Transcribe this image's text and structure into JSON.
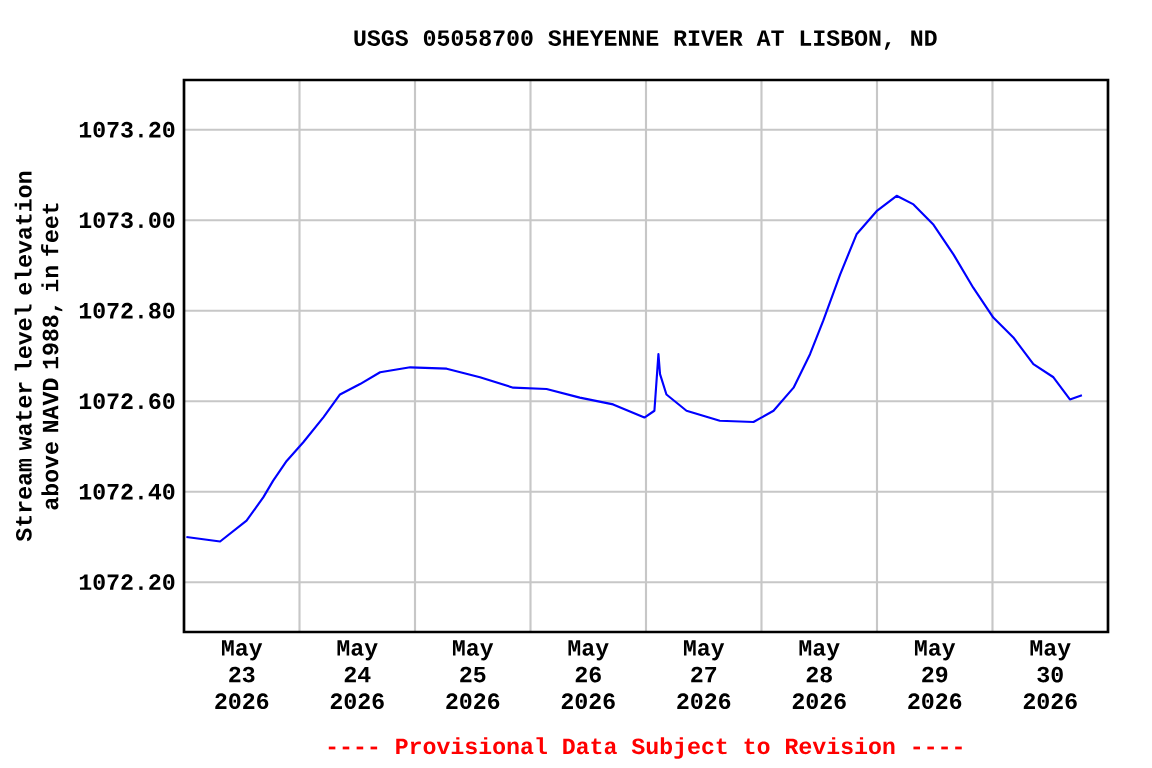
{
  "chart_data": {
    "type": "line",
    "title": "USGS 05058700 SHEYENNE RIVER AT LISBON, ND",
    "ylabel": "Stream water level elevation above NAVD 1988, in feet",
    "annotations": [
      "---- Provisional Data Subject to Revision ----"
    ],
    "color": "#0000ff",
    "grid": true,
    "xlim": [
      "2026-05-23T00:00",
      "2026-05-31T00:00"
    ],
    "xticks": [
      {
        "value": "2026-05-23T12:00",
        "label": "May 23 2026"
      },
      {
        "value": "2026-05-24T12:00",
        "label": "May 24 2026"
      },
      {
        "value": "2026-05-25T12:00",
        "label": "May 25 2026"
      },
      {
        "value": "2026-05-26T12:00",
        "label": "May 26 2026"
      },
      {
        "value": "2026-05-27T12:00",
        "label": "May 27 2026"
      },
      {
        "value": "2026-05-28T12:00",
        "label": "May 28 2026"
      },
      {
        "value": "2026-05-29T12:00",
        "label": "May 29 2026"
      },
      {
        "value": "2026-05-30T12:00",
        "label": "May 30 2026"
      },
      {
        "value": "2026-05-24T00:00",
        "label": null
      },
      {
        "value": "2026-05-25T00:00",
        "label": null
      },
      {
        "value": "2026-05-26T00:00",
        "label": null
      },
      {
        "value": "2026-05-27T00:00",
        "label": null
      },
      {
        "value": "2026-05-28T00:00",
        "label": null
      },
      {
        "value": "2026-05-29T00:00",
        "label": null
      },
      {
        "value": "2026-05-30T00:00",
        "label": null
      }
    ],
    "ylim": [
      1072.09,
      1073.31
    ],
    "yticks": [
      {
        "value": 1072.2,
        "label": "1072.20"
      },
      {
        "value": 1072.4,
        "label": "1072.40"
      },
      {
        "value": 1072.6,
        "label": "1072.60"
      },
      {
        "value": 1072.8,
        "label": "1072.80"
      },
      {
        "value": 1073.0,
        "label": "1073.00"
      },
      {
        "value": 1073.2,
        "label": "1073.20"
      }
    ],
    "x": [
      "2026-05-23T00:30",
      "2026-05-23T07:30",
      "2026-05-23T13:00",
      "2026-05-23T16:30",
      "2026-05-23T18:30",
      "2026-05-23T21:20",
      "2026-05-24T00:50",
      "2026-05-24T05:00",
      "2026-05-24T08:25",
      "2026-05-24T12:35",
      "2026-05-24T16:45",
      "2026-05-24T23:00",
      "2026-05-25T06:35",
      "2026-05-25T13:30",
      "2026-05-25T20:25",
      "2026-05-26T03:20",
      "2026-05-26T10:15",
      "2026-05-26T17:10",
      "2026-05-26T23:40",
      "2026-05-27T01:45",
      "2026-05-27T02:35",
      "2026-05-27T02:55",
      "2026-05-27T04:15",
      "2026-05-27T08:25",
      "2026-05-27T15:20",
      "2026-05-27T22:20",
      "2026-05-28T02:30",
      "2026-05-28T06:40",
      "2026-05-28T10:05",
      "2026-05-28T12:50",
      "2026-05-28T16:20",
      "2026-05-28T19:45",
      "2026-05-28T23:55",
      "2026-05-29T04:05",
      "2026-05-29T07:35",
      "2026-05-29T11:45",
      "2026-05-29T15:55",
      "2026-05-29T20:00",
      "2026-05-30T00:10",
      "2026-05-30T04:20",
      "2026-05-30T08:30",
      "2026-05-30T12:40",
      "2026-05-30T16:05",
      "2026-05-30T18:35"
    ],
    "values": [
      1072.3,
      1072.29,
      1072.336,
      1072.388,
      1072.424,
      1072.468,
      1072.51,
      1072.565,
      1072.615,
      1072.638,
      1072.664,
      1072.675,
      1072.672,
      1072.653,
      1072.63,
      1072.627,
      1072.608,
      1072.593,
      1072.564,
      1072.579,
      1072.704,
      1072.66,
      1072.615,
      1072.579,
      1072.557,
      1072.554,
      1072.579,
      1072.63,
      1072.704,
      1072.778,
      1072.88,
      1072.969,
      1073.02,
      1073.054,
      1073.035,
      1072.99,
      1072.924,
      1072.851,
      1072.785,
      1072.741,
      1072.682,
      1072.653,
      1072.604,
      1072.613
    ]
  }
}
